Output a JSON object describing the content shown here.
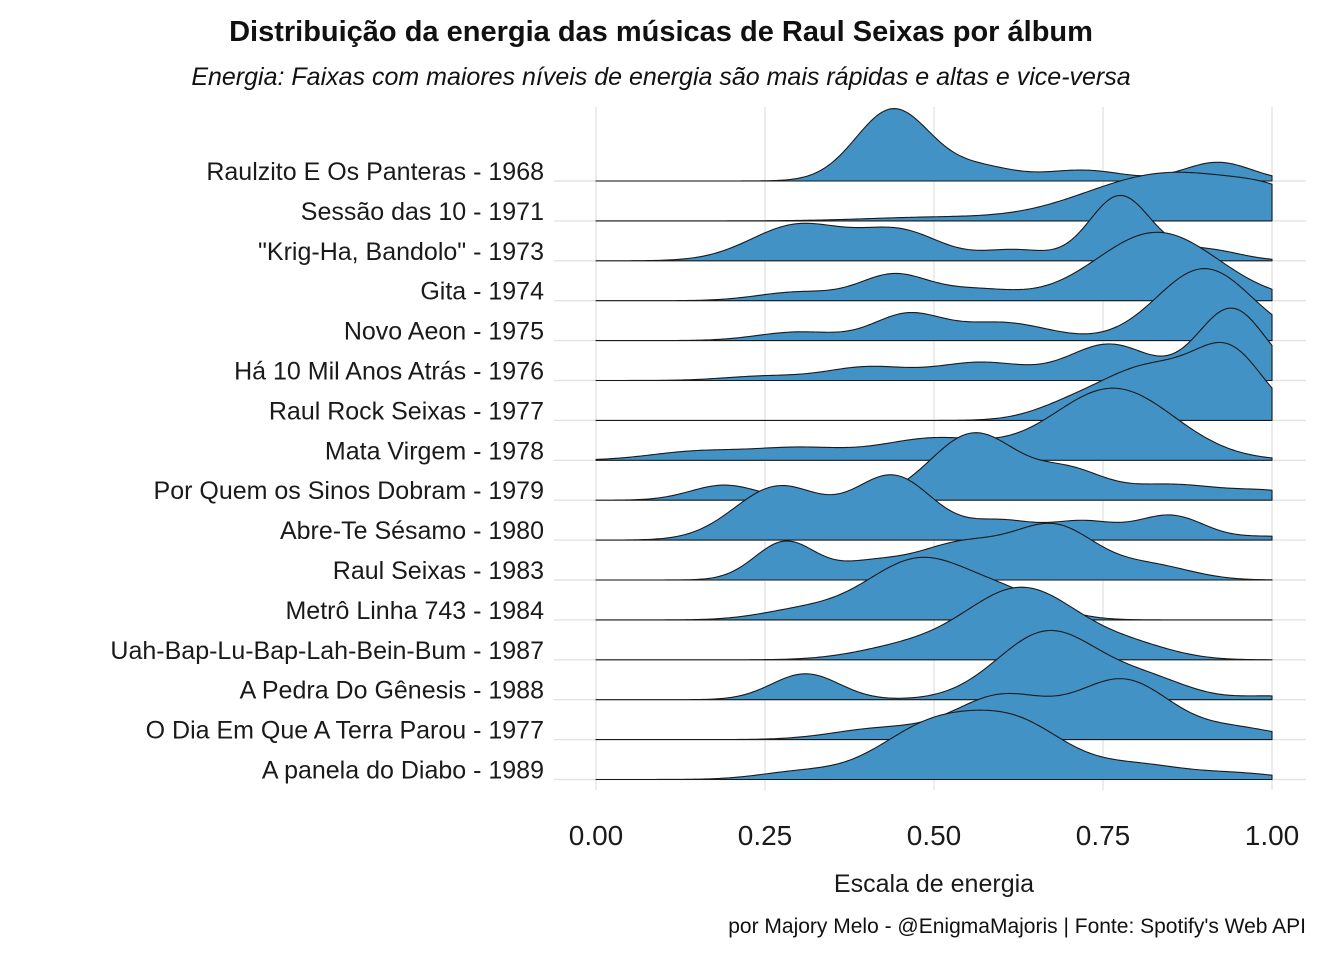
{
  "title": "Distribuição da energia das músicas de Raul Seixas por álbum",
  "subtitle": "Energia: Faixas com maiores níveis de energia são mais rápidas e altas e vice-versa",
  "caption": "por Majory Melo - @EnigmaMajoris | Fonte: Spotify's Web API",
  "colors": {
    "fill": "#4292c6",
    "outline": "#1a1a1a",
    "grid": "#e3e3e3",
    "text": "#1a1a1a"
  },
  "chart_data": {
    "type": "ridgeline",
    "title": "Distribuição da energia das músicas de Raul Seixas por álbum",
    "subtitle": "Energia: Faixas com maiores níveis de energia são mais rápidas e altas e vice-versa",
    "xlabel": "Escala de energia",
    "ylabel": "",
    "xlim": [
      0,
      1
    ],
    "x_ticks": [
      "0.00",
      "0.25",
      "0.50",
      "0.75",
      "1.00"
    ],
    "x_tick_values": [
      0,
      0.25,
      0.5,
      0.75,
      1
    ],
    "grid": true,
    "legend": "none",
    "series": [
      {
        "name": "Raulzito E Os Panteras - 1968",
        "peaks": [
          [
            0.44,
            0.055,
            1.0
          ],
          [
            0.57,
            0.05,
            0.18
          ],
          [
            0.72,
            0.06,
            0.15
          ],
          [
            0.92,
            0.05,
            0.26
          ]
        ]
      },
      {
        "name": "Sessão das 10 - 1971",
        "peaks": [
          [
            0.5,
            0.1,
            0.05
          ],
          [
            0.78,
            0.1,
            0.25
          ],
          [
            0.9,
            0.12,
            0.52
          ],
          [
            1.0,
            0.05,
            0.12
          ]
        ]
      },
      {
        "name": "\"Krig-Ha, Bandolo\" - 1973",
        "peaks": [
          [
            0.3,
            0.07,
            0.5
          ],
          [
            0.45,
            0.06,
            0.4
          ],
          [
            0.62,
            0.05,
            0.15
          ],
          [
            0.775,
            0.045,
            0.9
          ],
          [
            0.9,
            0.05,
            0.16
          ]
        ]
      },
      {
        "name": "Gita - 1974",
        "peaks": [
          [
            0.3,
            0.06,
            0.12
          ],
          [
            0.44,
            0.05,
            0.35
          ],
          [
            0.56,
            0.06,
            0.15
          ],
          [
            0.83,
            0.09,
            0.95
          ]
        ]
      },
      {
        "name": "Novo Aeon - 1975",
        "peaks": [
          [
            0.3,
            0.06,
            0.12
          ],
          [
            0.46,
            0.05,
            0.35
          ],
          [
            0.6,
            0.07,
            0.25
          ],
          [
            0.9,
            0.07,
            1.0
          ]
        ]
      },
      {
        "name": "Há 10 Mil Anos Atrás - 1976",
        "peaks": [
          [
            0.25,
            0.06,
            0.06
          ],
          [
            0.4,
            0.06,
            0.18
          ],
          [
            0.57,
            0.07,
            0.25
          ],
          [
            0.76,
            0.06,
            0.5
          ],
          [
            0.94,
            0.05,
            1.0
          ]
        ]
      },
      {
        "name": "Raul Rock Seixas - 1977",
        "peaks": [
          [
            0.69,
            0.05,
            0.1
          ],
          [
            0.82,
            0.08,
            0.75
          ],
          [
            0.94,
            0.05,
            0.8
          ]
        ]
      },
      {
        "name": "Mata Virgem - 1978",
        "peaks": [
          [
            0.15,
            0.07,
            0.12
          ],
          [
            0.3,
            0.07,
            0.16
          ],
          [
            0.5,
            0.08,
            0.3
          ],
          [
            0.765,
            0.09,
            1.0
          ]
        ]
      },
      {
        "name": "Por Quem os Sinos Dobram - 1979",
        "peaks": [
          [
            0.19,
            0.05,
            0.21
          ],
          [
            0.56,
            0.065,
            0.93
          ],
          [
            0.7,
            0.05,
            0.35
          ],
          [
            0.85,
            0.08,
            0.22
          ],
          [
            1.0,
            0.05,
            0.1
          ]
        ]
      },
      {
        "name": "Abre-Te Sésamo - 1980",
        "peaks": [
          [
            0.27,
            0.065,
            0.74
          ],
          [
            0.44,
            0.06,
            0.88
          ],
          [
            0.6,
            0.05,
            0.25
          ],
          [
            0.72,
            0.05,
            0.25
          ],
          [
            0.85,
            0.05,
            0.34
          ],
          [
            1.0,
            0.05,
            0.05
          ]
        ]
      },
      {
        "name": "Raul Seixas - 1983",
        "peaks": [
          [
            0.28,
            0.045,
            0.53
          ],
          [
            0.4,
            0.05,
            0.2
          ],
          [
            0.54,
            0.07,
            0.5
          ],
          [
            0.68,
            0.06,
            0.7
          ],
          [
            0.82,
            0.06,
            0.2
          ]
        ]
      },
      {
        "name": "Metrô Linha 743 - 1984",
        "peaks": [
          [
            0.3,
            0.06,
            0.12
          ],
          [
            0.48,
            0.08,
            0.85
          ],
          [
            0.62,
            0.06,
            0.25
          ]
        ]
      },
      {
        "name": "Uah-Bap-Lu-Bap-Lah-Bein-Bum - 1987",
        "peaks": [
          [
            0.45,
            0.07,
            0.15
          ],
          [
            0.63,
            0.085,
            1.0
          ],
          [
            0.8,
            0.06,
            0.15
          ]
        ]
      },
      {
        "name": "A Pedra Do Gênesis - 1988",
        "peaks": [
          [
            0.31,
            0.05,
            0.36
          ],
          [
            0.67,
            0.075,
            0.95
          ],
          [
            0.82,
            0.06,
            0.25
          ],
          [
            1.0,
            0.05,
            0.05
          ]
        ]
      },
      {
        "name": "O Dia Em Que A Terra Parou - 1977",
        "peaks": [
          [
            0.42,
            0.07,
            0.15
          ],
          [
            0.6,
            0.07,
            0.6
          ],
          [
            0.78,
            0.07,
            0.82
          ],
          [
            0.95,
            0.06,
            0.15
          ]
        ]
      },
      {
        "name": "A panela do Diabo - 1989",
        "peaks": [
          [
            0.3,
            0.06,
            0.1
          ],
          [
            0.5,
            0.08,
            0.75
          ],
          [
            0.63,
            0.07,
            0.65
          ],
          [
            0.8,
            0.07,
            0.2
          ],
          [
            0.95,
            0.06,
            0.08
          ]
        ]
      }
    ]
  }
}
